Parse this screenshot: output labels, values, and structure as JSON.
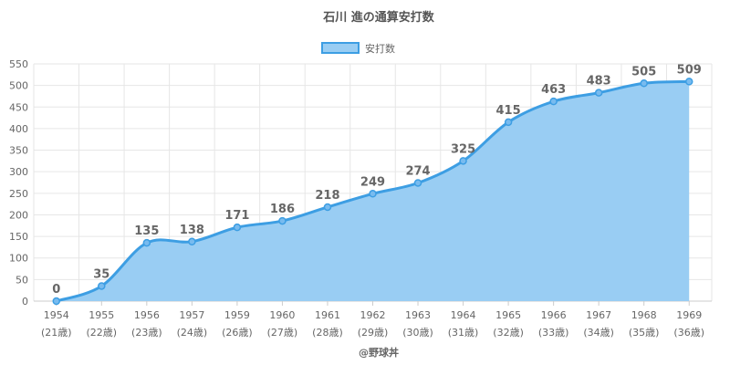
{
  "chart_data": {
    "type": "area",
    "title": "石川 進の通算安打数",
    "series": [
      {
        "name": "安打数",
        "values": [
          0,
          35,
          135,
          138,
          171,
          186,
          218,
          249,
          274,
          325,
          415,
          463,
          483,
          505,
          509
        ]
      }
    ],
    "categories": [
      "1954",
      "1955",
      "1956",
      "1957",
      "1959",
      "1960",
      "1961",
      "1962",
      "1963",
      "1964",
      "1965",
      "1966",
      "1967",
      "1968",
      "1969"
    ],
    "category_sublabels": [
      "(21歳)",
      "(22歳)",
      "(23歳)",
      "(24歳)",
      "(26歳)",
      "(27歳)",
      "(28歳)",
      "(29歳)",
      "(30歳)",
      "(31歳)",
      "(32歳)",
      "(33歳)",
      "(34歳)",
      "(35歳)",
      "(36歳)"
    ],
    "y_ticks": [
      0,
      50,
      100,
      150,
      200,
      250,
      300,
      350,
      400,
      450,
      500,
      550
    ],
    "ylim": [
      0,
      550
    ],
    "grid": true,
    "legend_position": "top",
    "colors": {
      "line": "#3d9ee3",
      "fill": "#99cdf3",
      "grid": "#e6e6e6",
      "axis": "#cccccc"
    }
  },
  "credit": "@野球丼"
}
